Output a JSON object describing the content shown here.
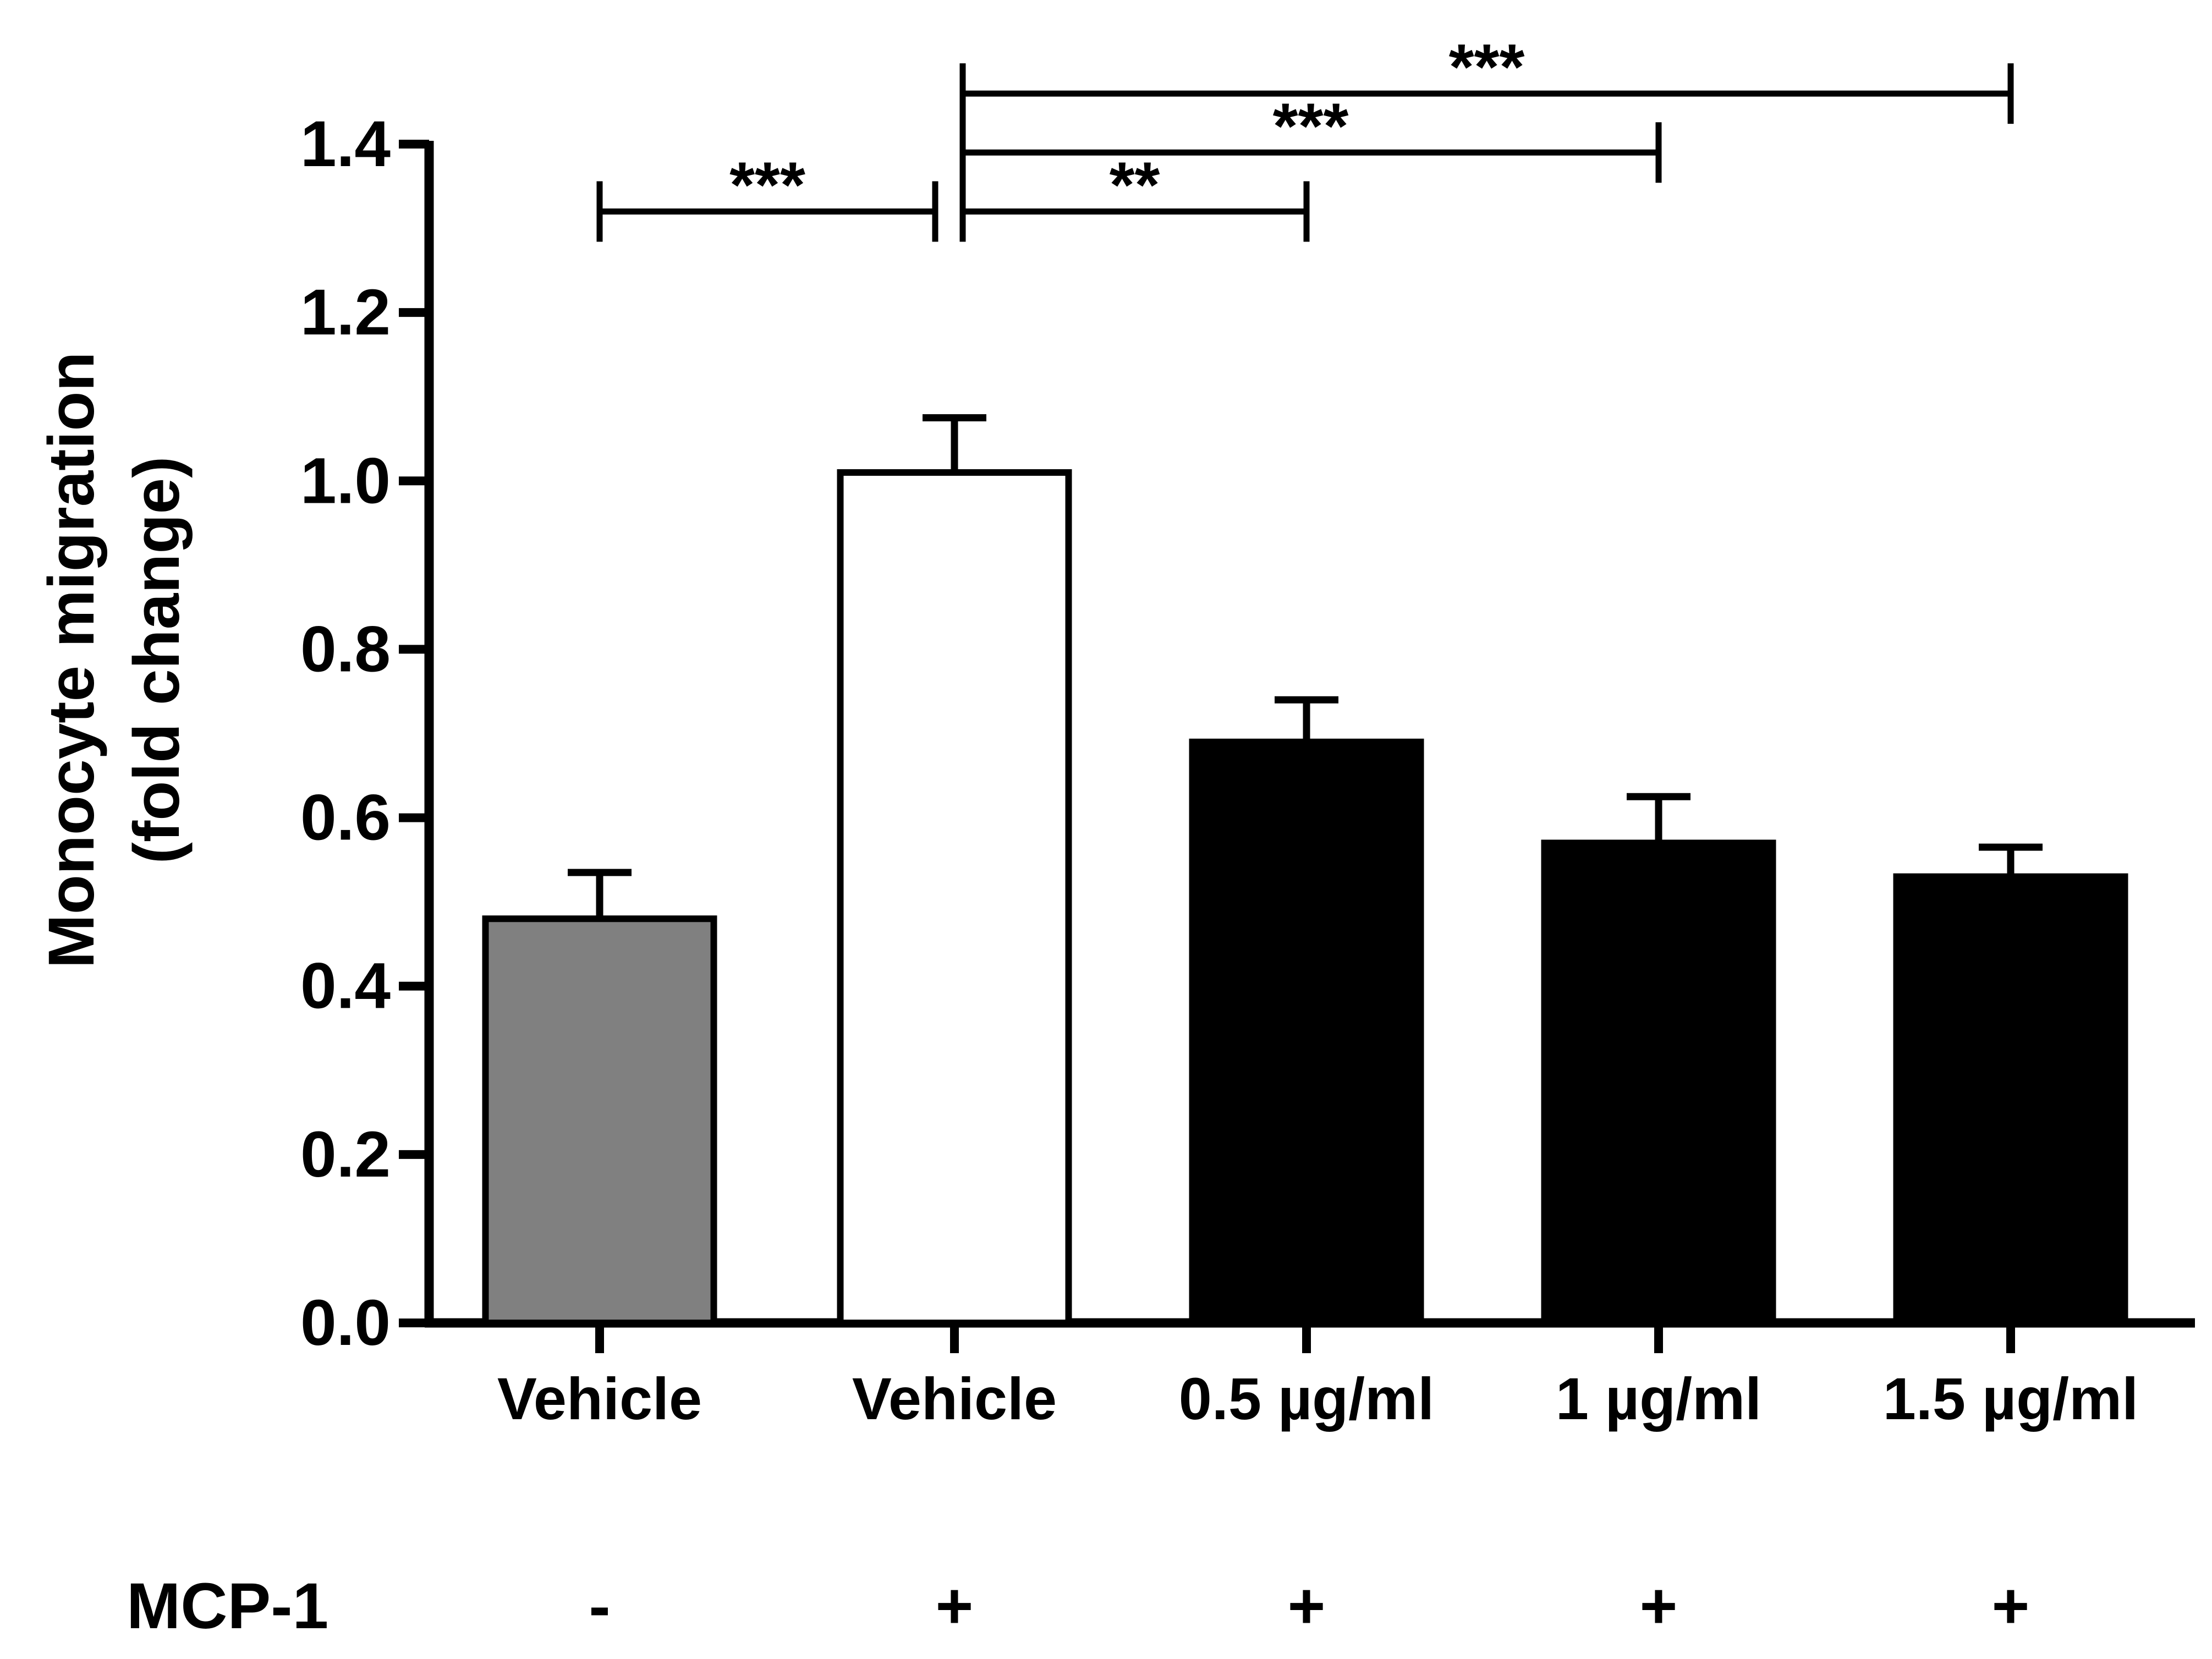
{
  "chart_data": {
    "type": "bar",
    "title": "",
    "xlabel": "",
    "ylabel_lines": [
      "Monocyte migration",
      "(fold change)"
    ],
    "ylim": [
      0,
      1.4
    ],
    "yticks": [
      "0.0",
      "0.2",
      "0.4",
      "0.6",
      "0.8",
      "1.0",
      "1.2",
      "1.4"
    ],
    "categories": [
      "Vehicle",
      "Vehicle",
      "0.5 µg/ml",
      "1 µg/ml",
      "1.5 µg/ml"
    ],
    "values": [
      0.48,
      1.01,
      0.69,
      0.57,
      0.53
    ],
    "errors": [
      0.055,
      0.065,
      0.05,
      0.055,
      0.035
    ],
    "colors": [
      "#808080",
      "#ffffff",
      "#000000",
      "#000000",
      "#000000"
    ],
    "treatment_row": {
      "label": "MCP-1",
      "values": [
        "-",
        "+",
        "+",
        "+",
        "+"
      ]
    },
    "significance": [
      {
        "from": 0,
        "to": 1,
        "label": "***",
        "y": 1.32
      },
      {
        "from": 1,
        "to": 2,
        "label": "**",
        "y": 1.32
      },
      {
        "from": 1,
        "to": 3,
        "label": "***",
        "y": 1.39
      },
      {
        "from": 1,
        "to": 4,
        "label": "***",
        "y": 1.46
      }
    ]
  }
}
